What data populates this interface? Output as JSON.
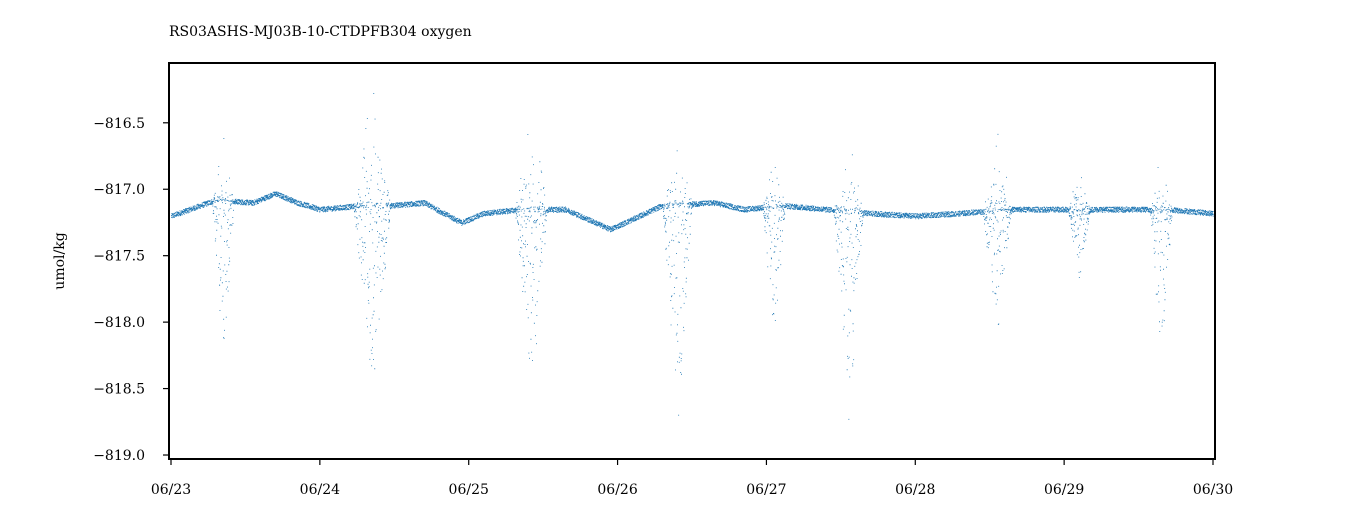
{
  "chart_data": {
    "type": "scatter",
    "title": "RS03ASHS-MJ03B-10-CTDPFB304 oxygen",
    "xlabel": "",
    "ylabel": "umol/kg",
    "x_ticks": [
      "06/23",
      "06/24",
      "06/25",
      "06/26",
      "06/27",
      "06/28",
      "06/29",
      "06/30"
    ],
    "xlim": [
      "06/23",
      "06/30"
    ],
    "y_ticks": [
      -816.5,
      -817.0,
      -817.5,
      -818.0,
      -818.5,
      -819.0
    ],
    "y_tick_labels": [
      "−816.5",
      "−817.0",
      "−817.5",
      "−818.0",
      "−818.5",
      "−819.0"
    ],
    "ylim": [
      -819.03,
      -816.05
    ],
    "grid": false,
    "legend": "none",
    "series": [
      {
        "color": "#1f77b4",
        "baseline_days": [
          0.0,
          0.3,
          0.55,
          0.7,
          0.85,
          1.0,
          1.3,
          1.5,
          1.7,
          1.95,
          2.1,
          2.35,
          2.65,
          2.95,
          3.05,
          3.3,
          3.65,
          3.85,
          4.1,
          4.4,
          4.7,
          5.0,
          5.3,
          5.6,
          6.0,
          6.4,
          6.7,
          7.0
        ],
        "baseline_values": [
          -817.2,
          -817.08,
          -817.1,
          -817.03,
          -817.1,
          -817.15,
          -817.12,
          -817.12,
          -817.1,
          -817.25,
          -817.18,
          -817.15,
          -817.15,
          -817.3,
          -817.25,
          -817.12,
          -817.1,
          -817.15,
          -817.12,
          -817.15,
          -817.18,
          -817.2,
          -817.18,
          -817.15,
          -817.15,
          -817.15,
          -817.15,
          -817.18
        ],
        "events": [
          {
            "day": 0.35,
            "width": 0.15,
            "low": -818.4,
            "high": -816.6
          },
          {
            "day": 1.35,
            "width": 0.25,
            "low": -818.7,
            "high": -816.2
          },
          {
            "day": 2.42,
            "width": 0.22,
            "low": -818.6,
            "high": -816.35
          },
          {
            "day": 3.4,
            "width": 0.2,
            "low": -818.85,
            "high": -816.5
          },
          {
            "day": 4.05,
            "width": 0.15,
            "low": -818.3,
            "high": -816.6
          },
          {
            "day": 4.55,
            "width": 0.2,
            "low": -818.9,
            "high": -816.6
          },
          {
            "day": 5.55,
            "width": 0.2,
            "low": -818.1,
            "high": -816.5
          },
          {
            "day": 6.1,
            "width": 0.15,
            "low": -817.7,
            "high": -816.8
          },
          {
            "day": 6.65,
            "width": 0.15,
            "low": -818.35,
            "high": -816.7
          }
        ]
      }
    ]
  }
}
